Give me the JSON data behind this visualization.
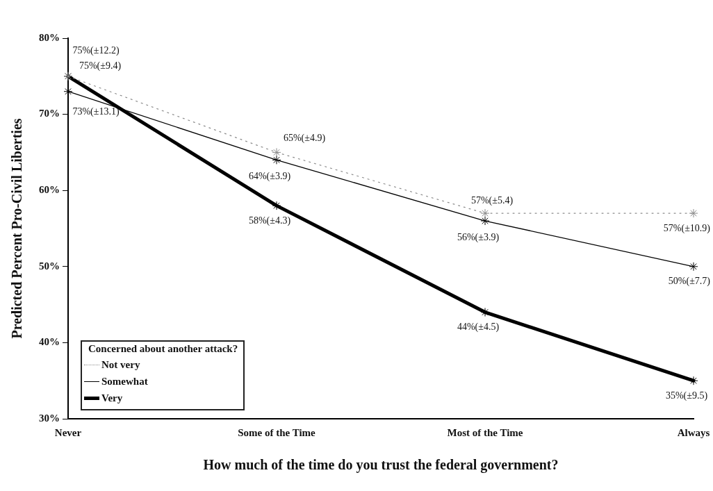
{
  "chart_data": {
    "type": "line",
    "xlabel": "How much of the time do you trust the federal government?",
    "ylabel": "Predicted Percent Pro-Civil Liberties",
    "legend_title": "Concerned about another attack?",
    "legend": "bottom left",
    "marker": "cross",
    "grid": false,
    "categories": [
      "Never",
      "Some of the Time",
      "Most of the Time",
      "Always"
    ],
    "ylim": [
      30,
      80
    ],
    "yticks": [
      {
        "value": 30,
        "label": "30%"
      },
      {
        "value": 40,
        "label": "40%"
      },
      {
        "value": 50,
        "label": "50%"
      },
      {
        "value": 60,
        "label": "60%"
      },
      {
        "value": 70,
        "label": "70%"
      },
      {
        "value": 80,
        "label": "80%"
      }
    ],
    "series": [
      {
        "name": "Not very",
        "color": "#8a8a8a",
        "line_style": "dotted",
        "values": [
          75,
          65,
          57,
          57
        ],
        "value_labels": [
          "75%(±9.4)",
          "65%(±4.9)",
          "57%(±5.4)",
          "57%(±10.9)"
        ]
      },
      {
        "name": "Somewhat",
        "color": "#000000",
        "line_style": "solid",
        "values": [
          73,
          64,
          56,
          50
        ],
        "value_labels": [
          "73%(±13.1)",
          "64%(±3.9)",
          "56%(±3.9)",
          "50%(±7.7)"
        ]
      },
      {
        "name": "Very",
        "color": "#000000",
        "line_style": "solid",
        "values": [
          75,
          58,
          44,
          35
        ],
        "value_labels": [
          "75%(±12.2)",
          "58%(±4.3)",
          "44%(±4.5)",
          "35%(±9.5)"
        ]
      }
    ]
  }
}
